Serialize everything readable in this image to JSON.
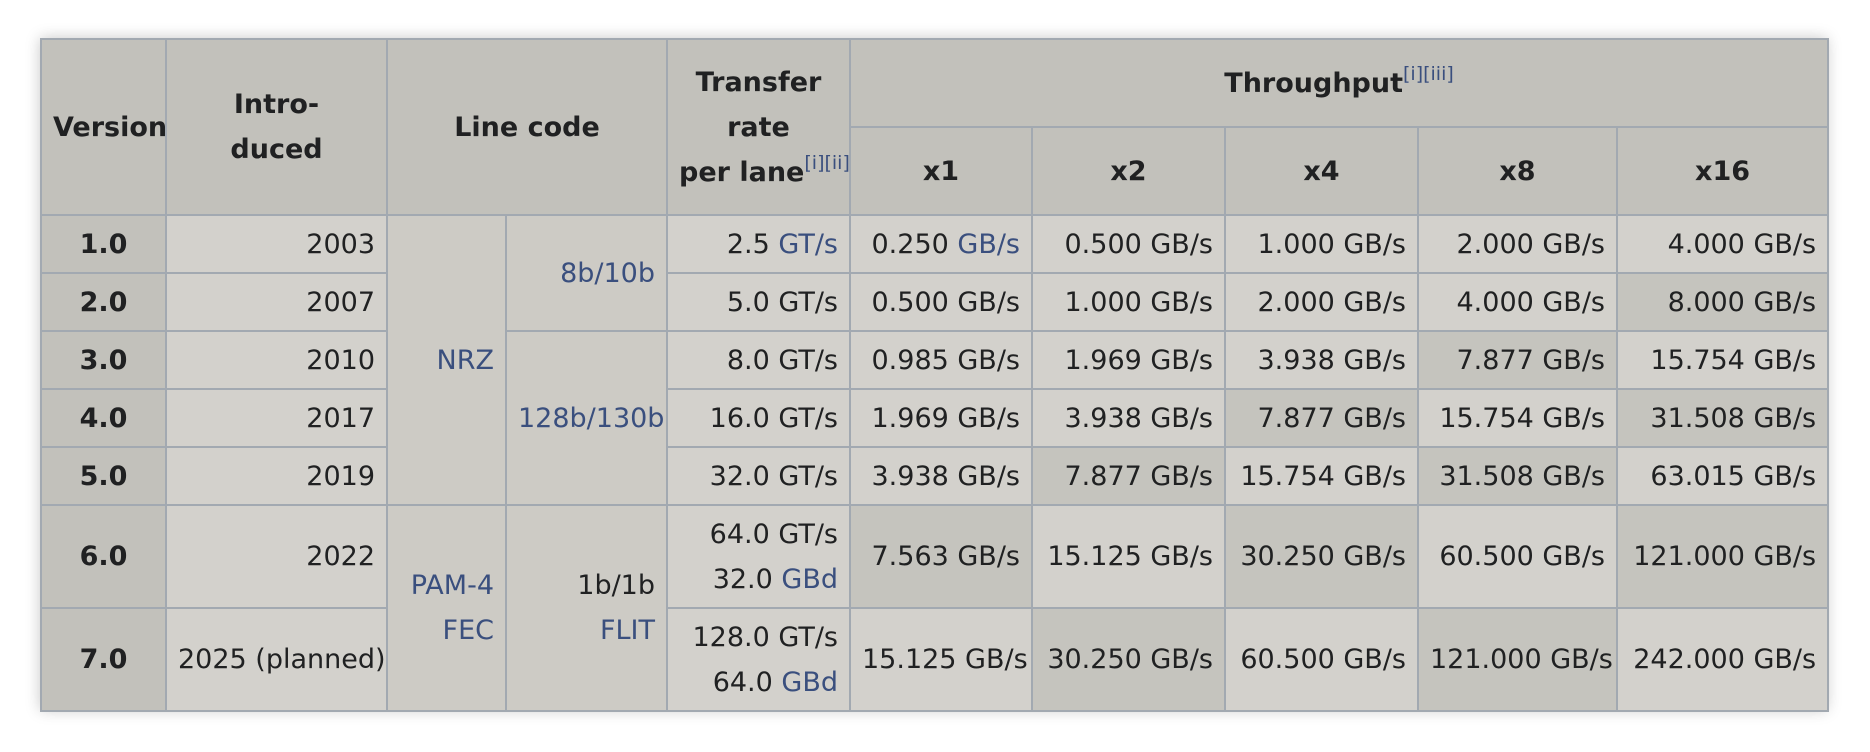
{
  "headers": {
    "version": "Version",
    "introduced_l1": "Intro-",
    "introduced_l2": "duced",
    "line_code": "Line code",
    "transfer_l1": "Transfer",
    "transfer_l2": "rate",
    "transfer_l3": "per lane",
    "transfer_refs": "[i][ii]",
    "throughput": "Throughput",
    "throughput_refs": "[i][iii]",
    "lanes": [
      "x1",
      "x2",
      "x4",
      "x8",
      "x16"
    ]
  },
  "line_codes": {
    "nrz": "NRZ",
    "code_8b10b": "8b/10b",
    "code_128b130b": "128b/130b",
    "pam4": "PAM-4",
    "fec": "FEC",
    "code_1b1b": "1b/1b",
    "flit": "FLIT"
  },
  "rows": [
    {
      "version": "1.0",
      "introduced": "2003",
      "rate": "2.5",
      "rate_unit": "GT/s",
      "x1": "0.250",
      "x1_unit": "GB/s",
      "x2": "0.500 GB/s",
      "x4": "1.000 GB/s",
      "x8": "2.000 GB/s",
      "x16": "4.000 GB/s"
    },
    {
      "version": "2.0",
      "introduced": "2007",
      "rate": "5.0 GT/s",
      "x1": "0.500 GB/s",
      "x2": "1.000 GB/s",
      "x4": "2.000 GB/s",
      "x8": "4.000 GB/s",
      "x16": "8.000 GB/s"
    },
    {
      "version": "3.0",
      "introduced": "2010",
      "rate": "8.0 GT/s",
      "x1": "0.985 GB/s",
      "x2": "1.969 GB/s",
      "x4": "3.938 GB/s",
      "x8": "7.877 GB/s",
      "x16": "15.754 GB/s"
    },
    {
      "version": "4.0",
      "introduced": "2017",
      "rate": "16.0 GT/s",
      "x1": "1.969 GB/s",
      "x2": "3.938 GB/s",
      "x4": "7.877 GB/s",
      "x8": "15.754 GB/s",
      "x16": "31.508 GB/s"
    },
    {
      "version": "5.0",
      "introduced": "2019",
      "rate": "32.0 GT/s",
      "x1": "3.938 GB/s",
      "x2": "7.877 GB/s",
      "x4": "15.754 GB/s",
      "x8": "31.508 GB/s",
      "x16": "63.015 GB/s"
    },
    {
      "version": "6.0",
      "introduced": "2022",
      "rate": "64.0 GT/s",
      "baud": "32.0",
      "baud_unit": "GBd",
      "x1": "7.563 GB/s",
      "x2": "15.125 GB/s",
      "x4": "30.250 GB/s",
      "x8": "60.500 GB/s",
      "x16": "121.000 GB/s"
    },
    {
      "version": "7.0",
      "introduced": "2025 (planned)",
      "rate": "128.0 GT/s",
      "baud": "64.0",
      "baud_unit": "GBd",
      "x1": "15.125 GB/s",
      "x2": "30.250 GB/s",
      "x4": "60.500 GB/s",
      "x8": "121.000 GB/s",
      "x16": "242.000 GB/s"
    }
  ],
  "colors": {
    "border": "#a2a9b1",
    "header_bg": "#c2c1bb",
    "cell_bg": "#cdcbc5",
    "link": "#3a4f7e"
  }
}
